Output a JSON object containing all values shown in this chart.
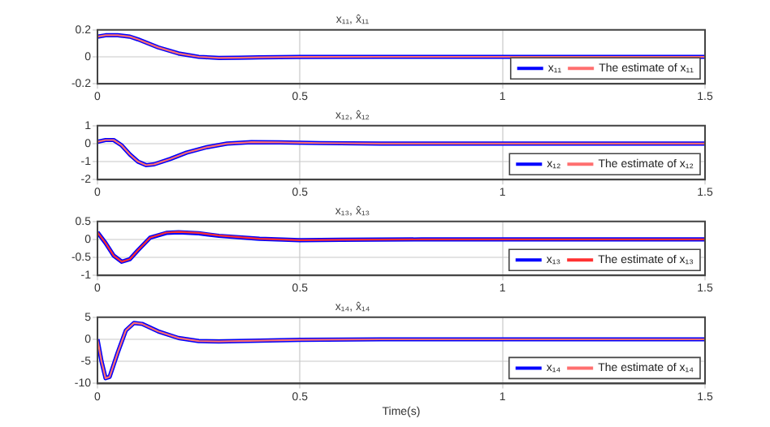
{
  "chart_data": [
    {
      "type": "line",
      "title": "x₁₁, x̂₁₁",
      "x": [
        0,
        0.02,
        0.05,
        0.08,
        0.1,
        0.15,
        0.2,
        0.25,
        0.3,
        0.35,
        0.4,
        0.5,
        0.7,
        1,
        1.5
      ],
      "series": [
        {
          "name": "x₁₁",
          "color": "#0000ff",
          "values": [
            0.15,
            0.16,
            0.16,
            0.15,
            0.13,
            0.07,
            0.025,
            0.0,
            -0.008,
            -0.007,
            -0.004,
            -0.001,
            0,
            0,
            0
          ]
        },
        {
          "name": "The estimate of x₁₁",
          "color": "#ff6f6f",
          "values": [
            0.15,
            0.16,
            0.16,
            0.15,
            0.13,
            0.07,
            0.025,
            0.0,
            -0.008,
            -0.007,
            -0.004,
            -0.001,
            0,
            0,
            0
          ]
        }
      ],
      "xlim": [
        0,
        1.5
      ],
      "xticks": [
        0,
        0.5,
        1,
        1.5
      ],
      "ylim": [
        -0.2,
        0.2
      ],
      "yticks": [
        -0.2,
        0,
        0.2
      ],
      "grid": true,
      "legend": "bottom right",
      "marker": "none",
      "line_style": "solid"
    },
    {
      "type": "line",
      "title": "x₁₂, x̂₁₂",
      "x": [
        0,
        0.02,
        0.04,
        0.06,
        0.08,
        0.1,
        0.12,
        0.14,
        0.18,
        0.22,
        0.27,
        0.32,
        0.38,
        0.45,
        0.55,
        0.7,
        1.5
      ],
      "series": [
        {
          "name": "x₁₂",
          "color": "#0000ff",
          "values": [
            0.1,
            0.2,
            0.2,
            -0.1,
            -0.6,
            -1.0,
            -1.2,
            -1.15,
            -0.85,
            -0.5,
            -0.2,
            0,
            0.08,
            0.07,
            0.03,
            0,
            0
          ]
        },
        {
          "name": "The estimate of x₁₂",
          "color": "#ff6f6f",
          "values": [
            0.1,
            0.2,
            0.2,
            -0.1,
            -0.6,
            -1.0,
            -1.2,
            -1.15,
            -0.85,
            -0.5,
            -0.2,
            0,
            0.08,
            0.07,
            0.03,
            0,
            0
          ]
        }
      ],
      "xlim": [
        0,
        1.5
      ],
      "xticks": [
        0,
        0.5,
        1,
        1.5
      ],
      "ylim": [
        -2,
        1
      ],
      "yticks": [
        -2,
        -1,
        0,
        1
      ],
      "grid": true,
      "legend": "bottom right",
      "marker": "none",
      "line_style": "solid"
    },
    {
      "type": "line",
      "title": "x₁₃, x̂₁₃",
      "x": [
        0,
        0.02,
        0.04,
        0.06,
        0.08,
        0.1,
        0.13,
        0.17,
        0.2,
        0.25,
        0.3,
        0.4,
        0.5,
        0.6,
        0.8,
        1.5
      ],
      "series": [
        {
          "name": "x₁₃",
          "color": "#0000ff",
          "values": [
            0.2,
            -0.1,
            -0.45,
            -0.62,
            -0.55,
            -0.3,
            0.05,
            0.18,
            0.2,
            0.17,
            0.1,
            0.02,
            -0.02,
            -0.01,
            0,
            0
          ]
        },
        {
          "name": "The estimate of x₁₃",
          "color": "#ff3030",
          "values": [
            0.2,
            -0.1,
            -0.45,
            -0.62,
            -0.55,
            -0.3,
            0.05,
            0.19,
            0.21,
            0.18,
            0.11,
            0.02,
            -0.02,
            -0.01,
            0,
            0
          ]
        }
      ],
      "xlim": [
        0,
        1.5
      ],
      "xticks": [
        0,
        0.5,
        1,
        1.5
      ],
      "ylim": [
        -1,
        0.5
      ],
      "yticks": [
        -1,
        -0.5,
        0,
        0.5
      ],
      "grid": true,
      "legend": "bottom right",
      "marker": "none",
      "line_style": "solid"
    },
    {
      "type": "line",
      "title": "x₁₄, x̂₁₄",
      "xlabel": "Time(s)",
      "x": [
        0,
        0.01,
        0.02,
        0.03,
        0.05,
        0.07,
        0.09,
        0.11,
        0.15,
        0.2,
        0.25,
        0.3,
        0.4,
        0.5,
        0.7,
        1.5
      ],
      "series": [
        {
          "name": "x₁₄",
          "color": "#0000ff",
          "values": [
            0,
            -5,
            -8.8,
            -8.5,
            -3,
            2,
            3.7,
            3.5,
            1.8,
            0.3,
            -0.4,
            -0.5,
            -0.3,
            -0.1,
            0,
            0
          ]
        },
        {
          "name": "The estimate of x₁₄",
          "color": "#ff6f6f",
          "values": [
            0,
            -5,
            -8.8,
            -8.5,
            -3,
            2,
            3.7,
            3.5,
            1.8,
            0.3,
            -0.4,
            -0.5,
            -0.3,
            -0.1,
            0,
            0
          ]
        }
      ],
      "xlim": [
        0,
        1.5
      ],
      "xticks": [
        0,
        0.5,
        1,
        1.5
      ],
      "ylim": [
        -10,
        5
      ],
      "yticks": [
        -10,
        -5,
        0,
        5
      ],
      "grid": true,
      "legend": "bottom right",
      "marker": "none",
      "line_style": "solid"
    }
  ]
}
